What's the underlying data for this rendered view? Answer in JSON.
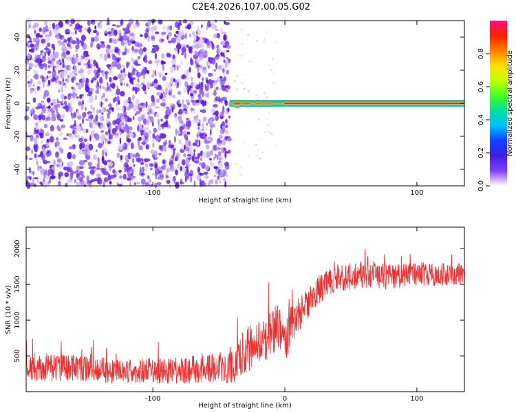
{
  "title": "C2E4.2026.107.00.05.G02",
  "chart_data": [
    {
      "type": "heatmap",
      "name": "spectrogram",
      "xlabel": "Height of straight line (km)",
      "ylabel": "Frequency (Hz)",
      "xlim": [
        -196,
        136
      ],
      "ylim": [
        -50,
        50
      ],
      "xticks": [
        -100,
        0,
        100
      ],
      "xtick_labels": [
        "-100",
        "",
        "100"
      ],
      "yticks": [
        -40,
        -20,
        0,
        20,
        40
      ],
      "ytick_labels": [
        "-40",
        "-20",
        "0",
        "20",
        "40"
      ],
      "noise_region_x": [
        -196,
        -42
      ],
      "signal_frequency_hz": 0,
      "signal_start_x": -42,
      "colorbar": {
        "label": "Normalized spectral amplitude",
        "range": [
          0,
          1
        ],
        "ticks": [
          0,
          0.2,
          0.4,
          0.6,
          0.8
        ],
        "tick_labels": [
          "0.0",
          "0.2",
          "0.4",
          "0.6",
          "0.8"
        ],
        "colormap": [
          "#ffffff",
          "#8040ff",
          "#4020e0",
          "#1040ff",
          "#00c0ff",
          "#00e0a0",
          "#40ff20",
          "#c0ff00",
          "#ffe000",
          "#ff8000",
          "#ff2000",
          "#ff1080"
        ]
      },
      "grid": false
    },
    {
      "type": "line",
      "name": "snr",
      "xlabel": "Height of straight line (km)",
      "ylabel": "SNR (10 * v/v)",
      "xlim": [
        -196,
        136
      ],
      "ylim": [
        0,
        2300
      ],
      "xticks": [
        -100,
        0,
        100
      ],
      "xtick_labels": [
        "-100",
        "0",
        "100"
      ],
      "yticks": [
        500,
        1000,
        1500,
        2000
      ],
      "ytick_labels": [
        "500",
        "1000",
        "1500",
        "2000"
      ],
      "series": [
        {
          "color": "#f03030",
          "envelope": {
            "x": [
              -196,
              -180,
              -160,
              -140,
              -120,
              -100,
              -80,
              -60,
              -45,
              -38,
              -34,
              -30,
              -25,
              -20,
              -15,
              -10,
              -5,
              0,
              5,
              10,
              15,
              20,
              25,
              30,
              35,
              40,
              50,
              60,
              70,
              80,
              90,
              100,
              110,
              120,
              136
            ],
            "center": [
              330,
              340,
              330,
              300,
              280,
              290,
              300,
              320,
              340,
              380,
              500,
              560,
              620,
              680,
              760,
              850,
              900,
              700,
              960,
              1060,
              1200,
              1300,
              1400,
              1480,
              1540,
              1580,
              1620,
              1640,
              1620,
              1600,
              1620,
              1640,
              1630,
              1640,
              1650
            ],
            "spread": [
              180,
              200,
              190,
              180,
              170,
              180,
              190,
              200,
              220,
              250,
              300,
              320,
              330,
              340,
              340,
              330,
              320,
              300,
              280,
              250,
              230,
              220,
              210,
              210,
              200,
              200,
              200,
              190,
              190,
              180,
              180,
              170,
              170,
              160,
              150
            ]
          }
        }
      ],
      "grid": false
    }
  ]
}
